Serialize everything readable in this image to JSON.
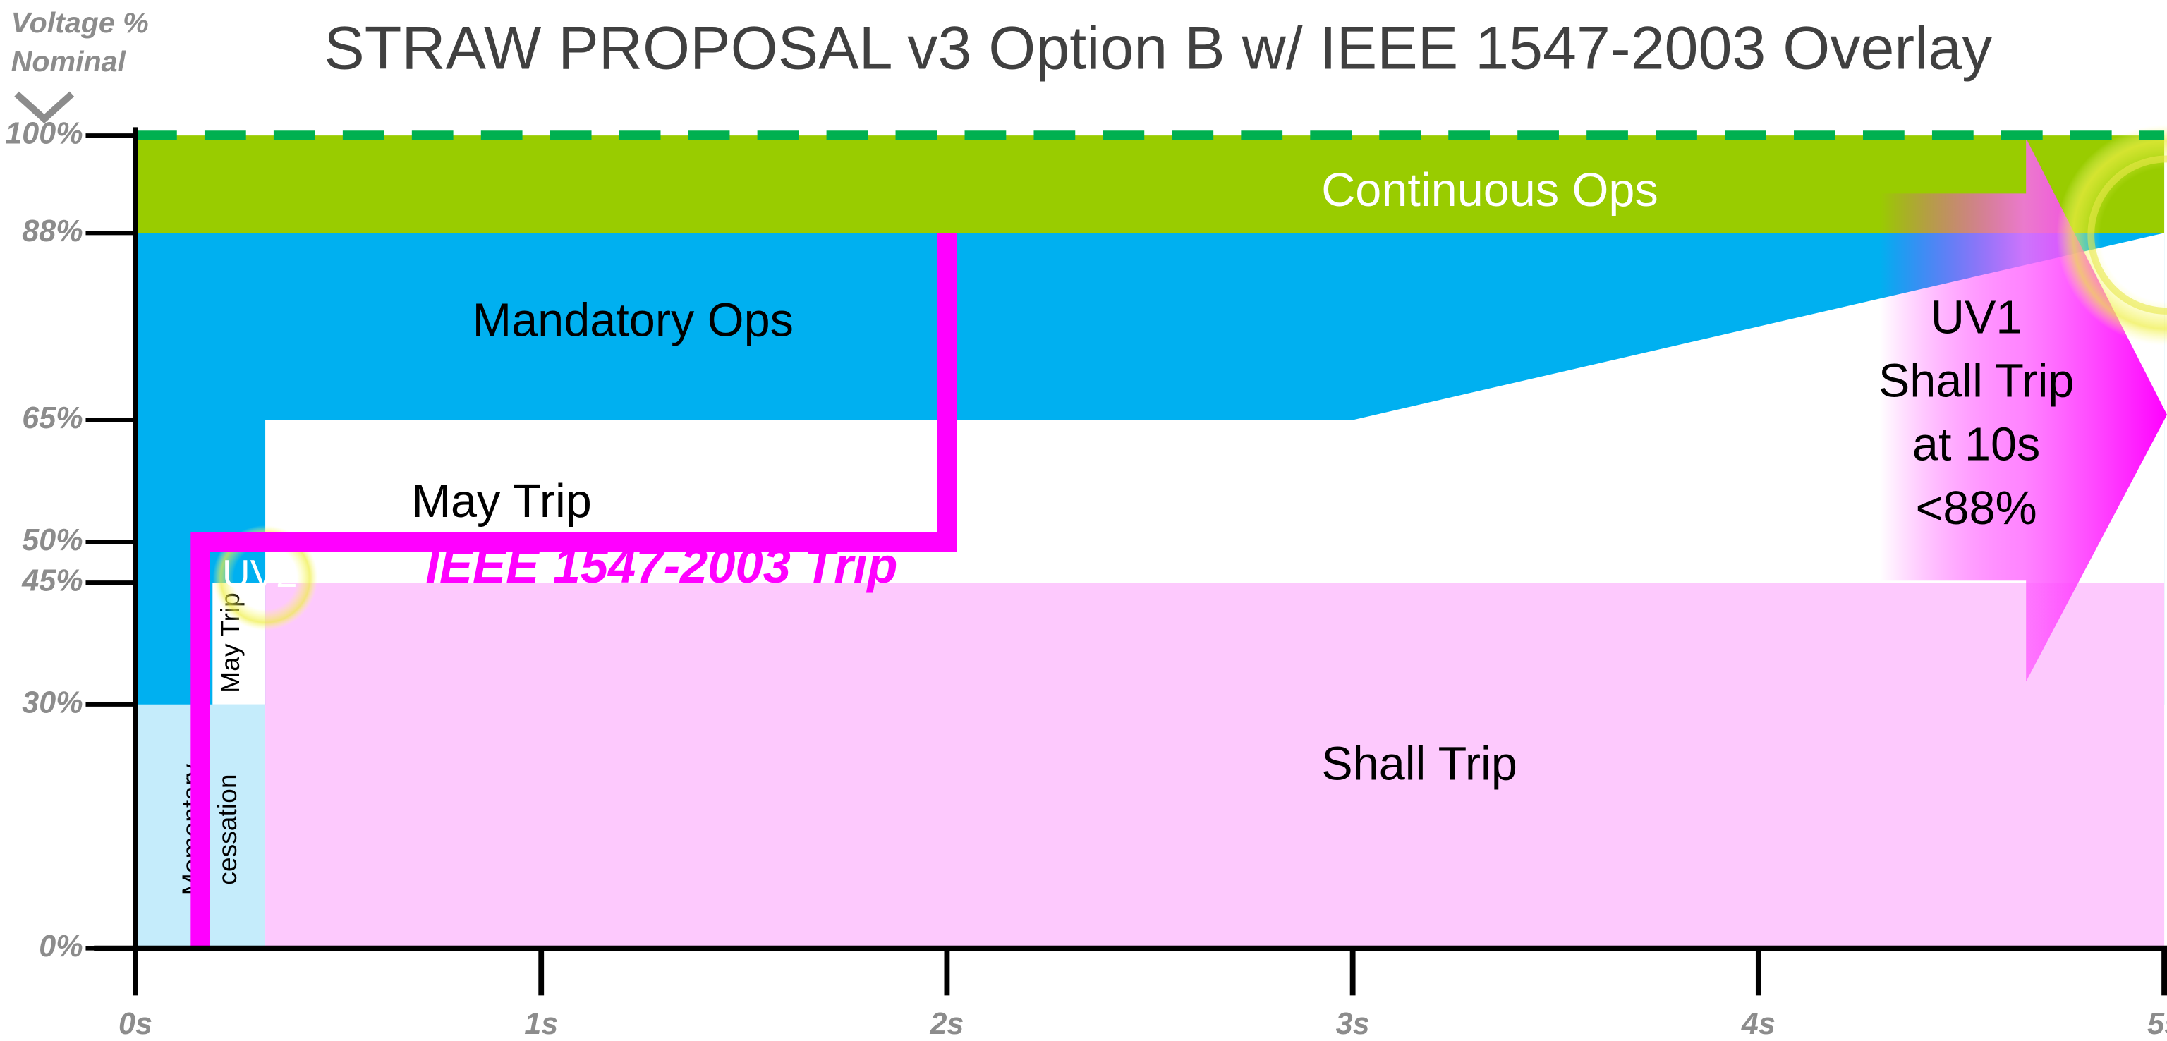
{
  "chart_data": {
    "type": "region",
    "title": "STRAW PROPOSAL v3 Option B w/ IEEE 1547-2003 Overlay",
    "y_label": [
      "Voltage %",
      "Nominal"
    ],
    "xlim": [
      0,
      5
    ],
    "ylim": [
      0,
      100
    ],
    "xticks": [
      {
        "value": 0,
        "label": "0s"
      },
      {
        "value": 1,
        "label": "1s"
      },
      {
        "value": 2,
        "label": "2s"
      },
      {
        "value": 3,
        "label": "3s"
      },
      {
        "value": 4,
        "label": "4s"
      },
      {
        "value": 5,
        "label": "5s"
      }
    ],
    "yticks": [
      {
        "value": 0,
        "label": "0%"
      },
      {
        "value": 30,
        "label": "30%"
      },
      {
        "value": 45,
        "label": "45%"
      },
      {
        "value": 50,
        "label": "50%"
      },
      {
        "value": 65,
        "label": "65%"
      },
      {
        "value": 88,
        "label": "88%"
      },
      {
        "value": 100,
        "label": "100%"
      }
    ],
    "regions": [
      {
        "name": "Mandatory Ops",
        "color": "#00b0f0",
        "x": [
          0,
          0,
          5,
          5
        ],
        "y": [
          30,
          88,
          88,
          30
        ]
      },
      {
        "name": "Continuous Ops",
        "color": "#99cc00",
        "x": [
          0,
          0,
          5,
          5
        ],
        "y": [
          88,
          100,
          100,
          88
        ]
      },
      {
        "name": "May Trip",
        "color": "#ffffff",
        "x": [
          0.32,
          0.32,
          3,
          5,
          5
        ],
        "y": [
          45,
          65,
          65,
          88,
          45
        ]
      },
      {
        "name": "May Trip",
        "color": "#ffffff",
        "x": [
          0.19,
          0.19,
          0.32,
          0.32
        ],
        "y": [
          30,
          45,
          45,
          30
        ]
      },
      {
        "name": [
          "Momentary",
          "cessation"
        ],
        "color": "#c5ecfb",
        "x": [
          0,
          0,
          0.32,
          0.32
        ],
        "y": [
          0,
          30,
          30,
          0
        ]
      },
      {
        "name": "Shall Trip",
        "color": "#fdc9fd",
        "x": [
          0.32,
          0.32,
          5,
          5
        ],
        "y": [
          0,
          45,
          45,
          0
        ]
      }
    ],
    "series": [
      {
        "name": "IEEE 1547-2003 Trip",
        "color": "#ff00ff",
        "x": [
          0.16,
          0.16,
          2,
          2
        ],
        "values": [
          0,
          50,
          50,
          88
        ]
      }
    ],
    "annotations": [
      {
        "text": "UV2"
      },
      {
        "text": [
          "UV1",
          "Shall Trip",
          "at 10s",
          "<88%"
        ]
      }
    ]
  }
}
